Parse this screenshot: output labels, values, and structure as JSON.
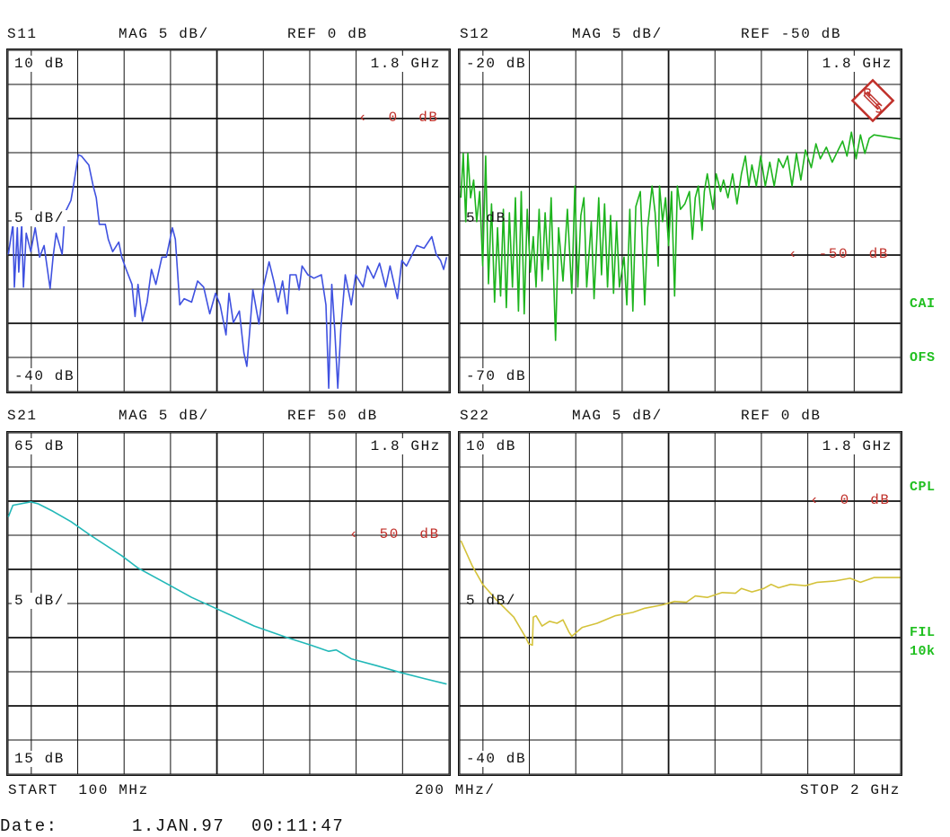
{
  "footer": {
    "start": "START  100 MHz",
    "per_div": "200 MHz/",
    "stop": "STOP 2 GHz",
    "date_label": "Date:",
    "date": "1.JAN.97",
    "time": "00:11:47"
  },
  "side_labels": {
    "cai": "CAI",
    "ofs": "OFS",
    "cpl": "CPL",
    "fil": "FIL",
    "fil_bw": "10k"
  },
  "logo_text": "R&S",
  "colors": {
    "grid": "#111111",
    "ref_marker": "#c0302a",
    "side_labels": "#1fbf1f"
  },
  "chart_data": [
    {
      "type": "line",
      "title": "S11",
      "scale": "MAG 5 dB/",
      "ref_label": "REF 0 dB",
      "top_label": "10 dB",
      "bottom_label": "-40 dB",
      "div_label": "5 dB/",
      "marker_label": "1.8 GHz",
      "ref_marker": "‹  0  dB",
      "ylim": [
        -40,
        10
      ],
      "ref": 0,
      "xlim": [
        100,
        2000
      ],
      "x_unit": "MHz",
      "grid": true,
      "color": "#3f51e0",
      "x": [
        101,
        121,
        127,
        140,
        146,
        159,
        166,
        178,
        198,
        217,
        236,
        255,
        281,
        294,
        307,
        333,
        345,
        371,
        384,
        403,
        416,
        448,
        467,
        480,
        493,
        519,
        532,
        551,
        577,
        590,
        609,
        634,
        647,
        660,
        679,
        699,
        718,
        737,
        763,
        782,
        808,
        821,
        840,
        859,
        891,
        917,
        943,
        969,
        994,
        1014,
        1039,
        1052,
        1071,
        1097,
        1116,
        1129,
        1142,
        1155,
        1181,
        1200,
        1225,
        1245,
        1264,
        1283,
        1303,
        1315,
        1341,
        1354,
        1367,
        1392,
        1418,
        1450,
        1470,
        1482,
        1495,
        1508,
        1521,
        1534,
        1553,
        1579,
        1598,
        1630,
        1649,
        1675,
        1701,
        1727,
        1746,
        1778,
        1797,
        1817,
        1836,
        1861,
        1893,
        1926,
        1945,
        1964,
        1977,
        1990
      ],
      "y": [
        -19.9,
        -15.5,
        -24.7,
        -16.0,
        -22.5,
        -15.5,
        -24.7,
        -16.8,
        -19.5,
        -16.0,
        -20.3,
        -18.6,
        -24.9,
        -20.3,
        -16.8,
        -19.9,
        -13.8,
        -12.0,
        -9.4,
        -5.3,
        -5.5,
        -6.8,
        -9.9,
        -11.6,
        -15.5,
        -15.5,
        -17.7,
        -19.5,
        -18.1,
        -20.3,
        -22.1,
        -24.3,
        -29.0,
        -24.3,
        -29.7,
        -26.9,
        -22.1,
        -24.3,
        -20.3,
        -20.3,
        -16.0,
        -17.7,
        -27.3,
        -26.4,
        -26.9,
        -23.8,
        -24.7,
        -28.6,
        -25.6,
        -27.3,
        -31.7,
        -25.6,
        -29.9,
        -28.2,
        -34.3,
        -36.3,
        -30.8,
        -25.1,
        -30.1,
        -24.7,
        -21.0,
        -23.8,
        -26.9,
        -23.8,
        -28.6,
        -22.9,
        -22.9,
        -25.1,
        -21.6,
        -22.9,
        -23.4,
        -22.9,
        -27.3,
        -39.5,
        -24.3,
        -31.2,
        -39.5,
        -30.8,
        -22.9,
        -27.3,
        -22.9,
        -24.7,
        -21.6,
        -23.4,
        -21.2,
        -24.7,
        -21.6,
        -26.4,
        -20.8,
        -21.6,
        -20.3,
        -18.6,
        -19.0,
        -17.3,
        -19.9,
        -20.8,
        -22.1,
        -20.3
      ]
    },
    {
      "type": "line",
      "title": "S12",
      "scale": "MAG 5 dB/",
      "ref_label": "REF -50 dB",
      "top_label": "-20 dB",
      "bottom_label": "-70 dB",
      "div_label": "5 dB",
      "marker_label": "1.8 GHz",
      "ref_marker": "‹  -50  dB",
      "ylim": [
        -70,
        -20
      ],
      "ref": -50,
      "xlim": [
        100,
        2000
      ],
      "x_unit": "MHz",
      "grid": true,
      "color": "#1db41d",
      "x": [
        105,
        115,
        126,
        135,
        147,
        160,
        173,
        186,
        199,
        212,
        224,
        237,
        250,
        263,
        276,
        288,
        301,
        314,
        327,
        340,
        353,
        365,
        378,
        391,
        404,
        417,
        429,
        442,
        455,
        468,
        481,
        494,
        506,
        513,
        526,
        545,
        564,
        583,
        596,
        609,
        622,
        635,
        647,
        667,
        679,
        699,
        711,
        724,
        737,
        750,
        763,
        776,
        788,
        808,
        820,
        833,
        846,
        859,
        878,
        897,
        910,
        929,
        942,
        955,
        961,
        974,
        987,
        1000,
        1013,
        1026,
        1038,
        1051,
        1070,
        1090,
        1103,
        1115,
        1128,
        1144,
        1154,
        1167,
        1179,
        1192,
        1205,
        1224,
        1237,
        1256,
        1276,
        1295,
        1314,
        1331,
        1346,
        1359,
        1378,
        1397,
        1417,
        1436,
        1455,
        1474,
        1494,
        1513,
        1532,
        1551,
        1570,
        1590,
        1615,
        1635,
        1654,
        1680,
        1705,
        1731,
        1750,
        1769,
        1788,
        1808,
        1827,
        1846,
        1865,
        1885,
        1998
      ],
      "y": [
        -41.6,
        -35.1,
        -45.1,
        -35.1,
        -41.6,
        -39.0,
        -45.1,
        -40.7,
        -51.6,
        -35.5,
        -54.2,
        -42.5,
        -56.9,
        -46.0,
        -56.0,
        -43.3,
        -57.7,
        -43.8,
        -54.7,
        -41.6,
        -58.2,
        -40.7,
        -58.6,
        -43.3,
        -52.5,
        -47.3,
        -54.7,
        -43.3,
        -53.8,
        -43.8,
        -52.1,
        -41.6,
        -54.7,
        -62.5,
        -46.0,
        -53.8,
        -43.3,
        -55.6,
        -39.9,
        -54.7,
        -44.2,
        -41.6,
        -54.7,
        -45.1,
        -56.4,
        -41.6,
        -52.9,
        -42.5,
        -54.7,
        -44.2,
        -55.6,
        -45.1,
        -54.7,
        -50.3,
        -57.3,
        -43.3,
        -58.2,
        -42.9,
        -40.7,
        -57.3,
        -46.0,
        -39.9,
        -43.8,
        -51.6,
        -39.9,
        -45.1,
        -41.6,
        -48.6,
        -40.7,
        -56.0,
        -39.9,
        -43.3,
        -42.5,
        -40.7,
        -47.7,
        -41.6,
        -39.9,
        -46.4,
        -40.7,
        -38.1,
        -40.7,
        -43.3,
        -38.1,
        -40.7,
        -39.0,
        -41.6,
        -38.1,
        -42.5,
        -38.1,
        -35.5,
        -39.9,
        -36.8,
        -39.9,
        -35.5,
        -39.9,
        -36.4,
        -39.9,
        -35.9,
        -37.2,
        -35.5,
        -39.9,
        -35.1,
        -39.0,
        -34.6,
        -37.2,
        -33.7,
        -35.9,
        -34.2,
        -36.4,
        -34.6,
        -33.3,
        -35.5,
        -32.0,
        -35.9,
        -32.4,
        -35.1,
        -32.9,
        -32.4,
        -33.0
      ]
    },
    {
      "type": "line",
      "title": "S21",
      "scale": "MAG 5 dB/",
      "ref_label": "REF 50 dB",
      "top_label": "65 dB",
      "bottom_label": "15 dB",
      "div_label": "5 dB/",
      "marker_label": "1.8 GHz",
      "ref_marker": "‹  50  dB",
      "ylim": [
        15,
        65
      ],
      "ref": 50,
      "xlim": [
        100,
        2000
      ],
      "x_unit": "MHz",
      "grid": true,
      "color": "#22b8b8",
      "x": [
        101,
        121,
        198,
        230,
        294,
        371,
        455,
        590,
        660,
        789,
        891,
        1007,
        1161,
        1303,
        1405,
        1482,
        1514,
        1579,
        1688,
        1791,
        1894,
        1990
      ],
      "y": [
        52.7,
        54.4,
        54.9,
        54.6,
        53.5,
        52.0,
        50.0,
        47.0,
        45.2,
        42.8,
        40.9,
        39.1,
        36.7,
        35.0,
        33.9,
        33.0,
        33.2,
        31.9,
        30.9,
        29.9,
        29.0,
        28.2
      ]
    },
    {
      "type": "line",
      "title": "S22",
      "scale": "MAG 5 dB/",
      "ref_label": "REF 0 dB",
      "top_label": "10 dB",
      "bottom_label": "-40 dB",
      "div_label": "5 dB/",
      "marker_label": "1.8 GHz",
      "ref_marker": "‹  0  dB",
      "ylim": [
        -40,
        10
      ],
      "ref": 0,
      "xlim": [
        100,
        2000
      ],
      "x_unit": "MHz",
      "grid": true,
      "color": "#d4c23a",
      "x": [
        105,
        154,
        199,
        256,
        333,
        385,
        397,
        413,
        417,
        429,
        455,
        487,
        519,
        545,
        571,
        583,
        628,
        692,
        769,
        846,
        897,
        974,
        1026,
        1077,
        1115,
        1167,
        1231,
        1288,
        1314,
        1359,
        1410,
        1442,
        1474,
        1526,
        1590,
        1641,
        1718,
        1782,
        1827,
        1885,
        1998
      ],
      "y": [
        -5.8,
        -9.5,
        -12.2,
        -14.4,
        -17.0,
        -20.0,
        -20.9,
        -21.1,
        -17.0,
        -16.8,
        -18.3,
        -17.6,
        -17.9,
        -17.4,
        -19.2,
        -19.8,
        -18.5,
        -17.9,
        -16.8,
        -16.3,
        -15.7,
        -15.2,
        -14.7,
        -14.8,
        -13.9,
        -14.1,
        -13.4,
        -13.5,
        -12.8,
        -13.3,
        -12.8,
        -12.2,
        -12.7,
        -12.2,
        -12.4,
        -11.9,
        -11.7,
        -11.3,
        -11.9,
        -11.2,
        -11.2
      ]
    }
  ]
}
